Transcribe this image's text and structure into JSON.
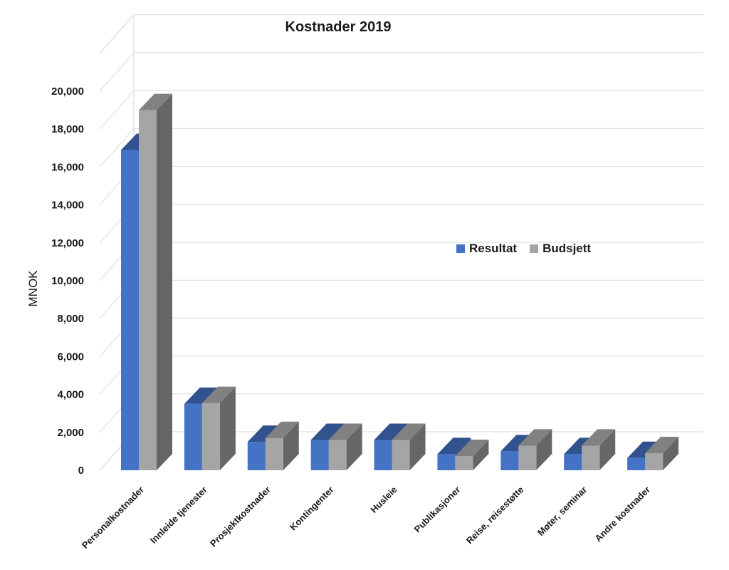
{
  "chart_data": {
    "type": "bar",
    "title": "Kostnader 2019",
    "ylabel": "MNOK",
    "xlabel": "",
    "ylim": [
      0,
      20000
    ],
    "yticks": [
      0,
      2000,
      4000,
      6000,
      8000,
      10000,
      12000,
      14000,
      16000,
      18000,
      20000
    ],
    "ytick_labels": [
      "0",
      "2,000",
      "4,000",
      "6,000",
      "8,000",
      "10,000",
      "12,000",
      "14,000",
      "16,000",
      "18,000",
      "20,000"
    ],
    "categories": [
      "Personalkostnader",
      "Innleide tjenester",
      "Prosjektkostnader",
      "Kontingenter",
      "Husleie",
      "Publikasjoner",
      "Reise, reisestøtte",
      "Møter, seminar",
      "Andre kostnader"
    ],
    "series": [
      {
        "name": "Resultat",
        "color": "#4472c4",
        "values": [
          16900,
          3500,
          1500,
          1600,
          1600,
          850,
          1000,
          850,
          650
        ]
      },
      {
        "name": "Budsjett",
        "color": "#a5a5a5",
        "values": [
          19000,
          3550,
          1700,
          1600,
          1600,
          750,
          1300,
          1300,
          900
        ]
      }
    ],
    "grid": true,
    "legend_position": "right-middle",
    "projection": "3d"
  }
}
